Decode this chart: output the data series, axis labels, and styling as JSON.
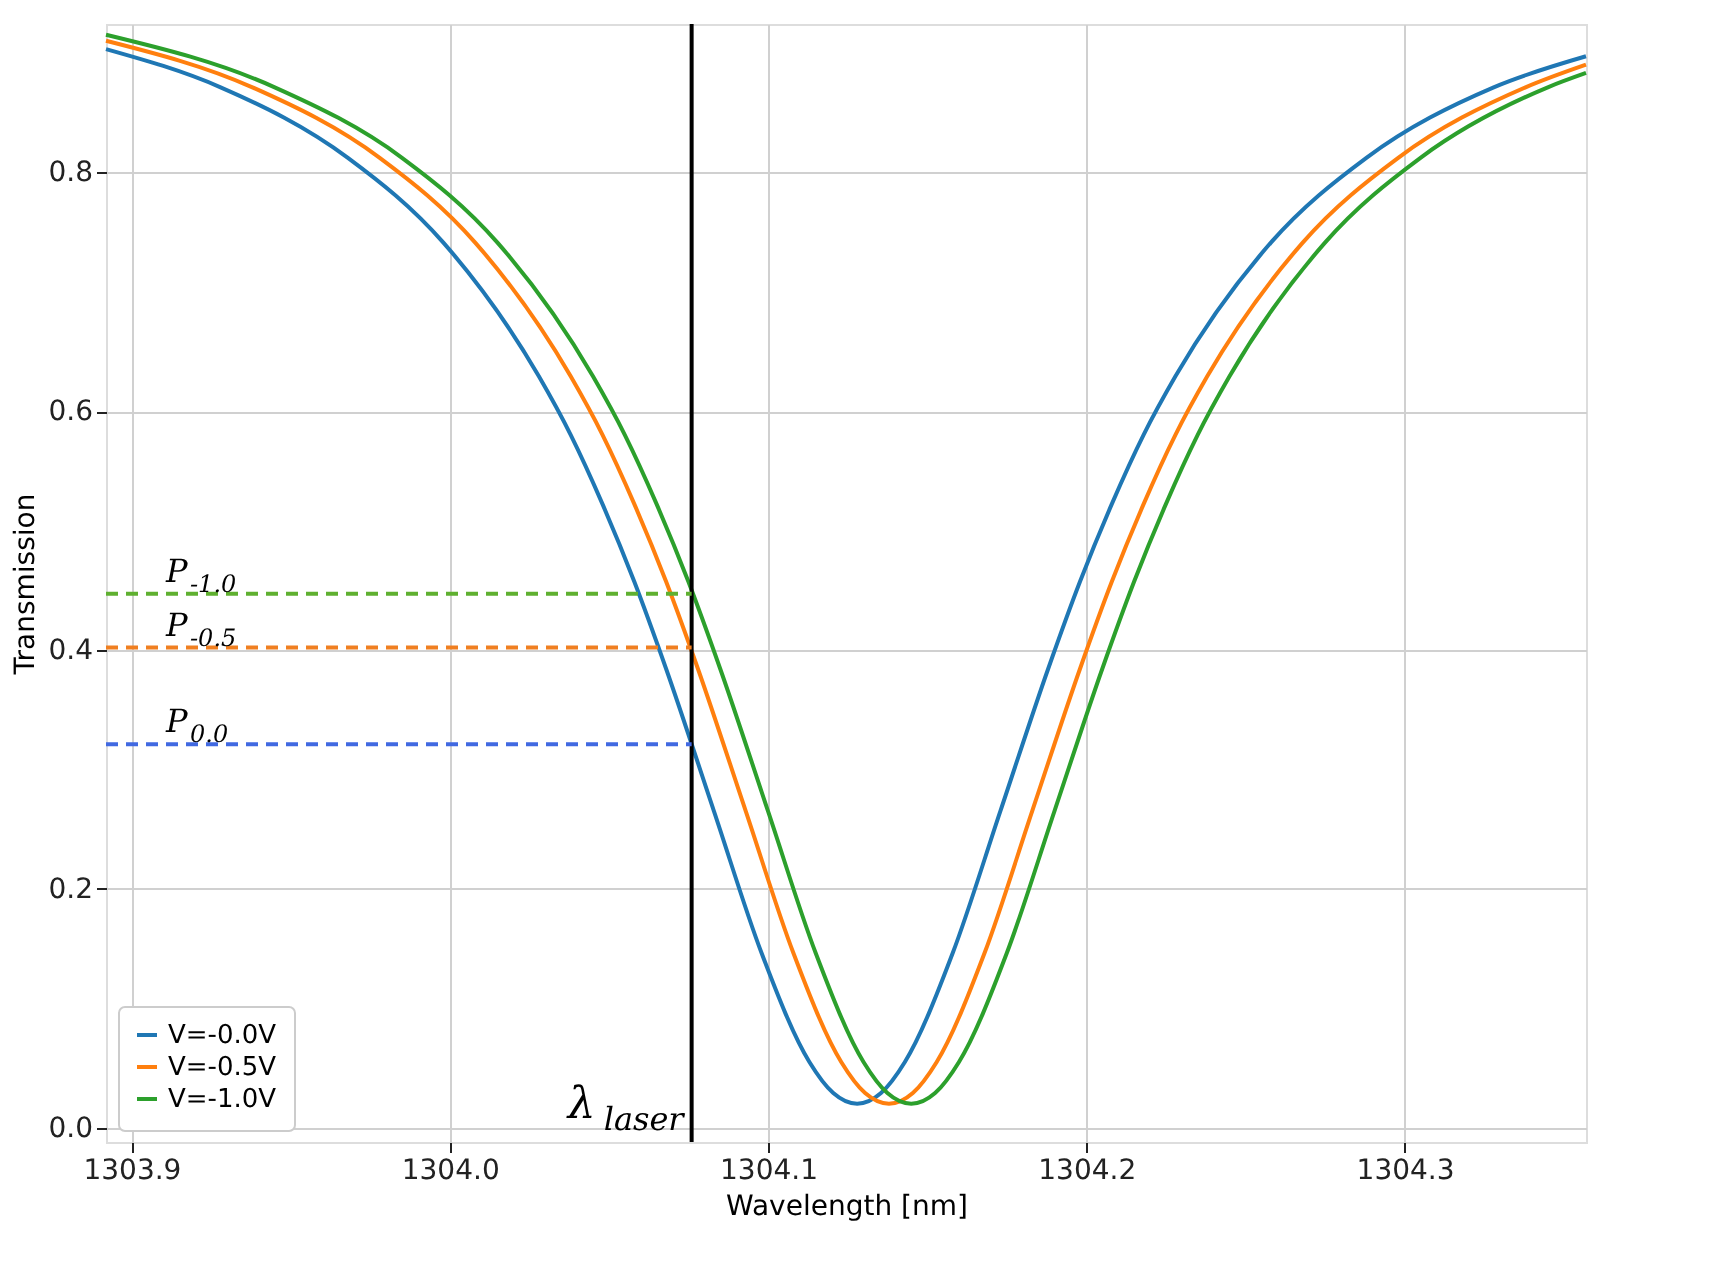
{
  "chart_data": {
    "type": "line",
    "xlabel": "Wavelength [nm]",
    "ylabel": "Transmission",
    "xlim": [
      1303.892,
      1304.357
    ],
    "ylim": [
      -0.012,
      0.924
    ],
    "xticks": [
      1303.9,
      {
        "value": 1304.0,
        "label": "1304.0"
      },
      1304.1,
      1304.2,
      1304.3
    ],
    "yticks": [
      {
        "value": 0.0,
        "label": "0.0"
      },
      0.2,
      0.4,
      0.6,
      0.8
    ],
    "grid": true,
    "legend": "bottom left",
    "line_style": "solid",
    "marker": "none",
    "series": [
      {
        "name": "V=-0.0V",
        "color": "#1f77b4",
        "x": [
          1303.892,
          1303.928,
          1303.968,
          1303.998,
          1304.028,
          1304.038,
          1304.048,
          1304.058,
          1304.068,
          1304.083,
          1304.098,
          1304.113,
          1304.1205,
          1304.128,
          1304.1355,
          1304.143,
          1304.158,
          1304.173,
          1304.188,
          1304.198,
          1304.208,
          1304.218,
          1304.228,
          1304.258,
          1304.288,
          1304.328,
          1304.357
        ],
        "values": [
          0.903,
          0.871,
          0.812,
          0.741,
          0.629,
          0.58,
          0.522,
          0.457,
          0.384,
          0.265,
          0.146,
          0.055,
          0.029,
          0.02,
          0.029,
          0.055,
          0.146,
          0.265,
          0.384,
          0.457,
          0.522,
          0.58,
          0.629,
          0.741,
          0.812,
          0.871,
          0.897
        ]
      },
      {
        "name": "V=-0.5V",
        "color": "#ff7f0e",
        "x": [
          1303.892,
          1303.938,
          1303.978,
          1304.008,
          1304.038,
          1304.048,
          1304.058,
          1304.068,
          1304.078,
          1304.093,
          1304.108,
          1304.123,
          1304.1305,
          1304.138,
          1304.1455,
          1304.153,
          1304.168,
          1304.183,
          1304.198,
          1304.208,
          1304.218,
          1304.228,
          1304.238,
          1304.268,
          1304.298,
          1304.338,
          1304.357
        ],
        "values": [
          0.91,
          0.871,
          0.812,
          0.741,
          0.629,
          0.58,
          0.522,
          0.457,
          0.384,
          0.265,
          0.146,
          0.055,
          0.029,
          0.02,
          0.029,
          0.055,
          0.146,
          0.265,
          0.384,
          0.457,
          0.522,
          0.58,
          0.629,
          0.741,
          0.812,
          0.871,
          0.89
        ]
      },
      {
        "name": "V=-1.0V",
        "color": "#2ca02c",
        "x": [
          1303.892,
          1303.945,
          1303.985,
          1304.015,
          1304.045,
          1304.055,
          1304.065,
          1304.075,
          1304.085,
          1304.1,
          1304.115,
          1304.13,
          1304.1375,
          1304.145,
          1304.1525,
          1304.16,
          1304.175,
          1304.19,
          1304.205,
          1304.215,
          1304.225,
          1304.235,
          1304.245,
          1304.275,
          1304.305,
          1304.345,
          1304.357
        ],
        "values": [
          0.915,
          0.871,
          0.812,
          0.741,
          0.629,
          0.58,
          0.522,
          0.457,
          0.384,
          0.265,
          0.146,
          0.055,
          0.029,
          0.02,
          0.029,
          0.055,
          0.146,
          0.265,
          0.384,
          0.457,
          0.522,
          0.58,
          0.629,
          0.741,
          0.812,
          0.871,
          0.883
        ]
      }
    ],
    "ref_lines": [
      {
        "axis": "x",
        "value": 1304.076,
        "label": "λ$_{laser}$",
        "color": "#000000",
        "line_style": "solid"
      },
      {
        "axis": "y",
        "value": 0.447,
        "label": "P$_{-1.0}$",
        "color": "#5fb030",
        "line_style": "dashed"
      },
      {
        "axis": "y",
        "value": 0.402,
        "label": "P$_{-0.5}$",
        "color": "#f07f20",
        "line_style": "dashed"
      },
      {
        "axis": "y",
        "value": 0.321,
        "label": "P$_{0.0}$",
        "color": "#4169e1",
        "line_style": "dashed"
      }
    ]
  }
}
